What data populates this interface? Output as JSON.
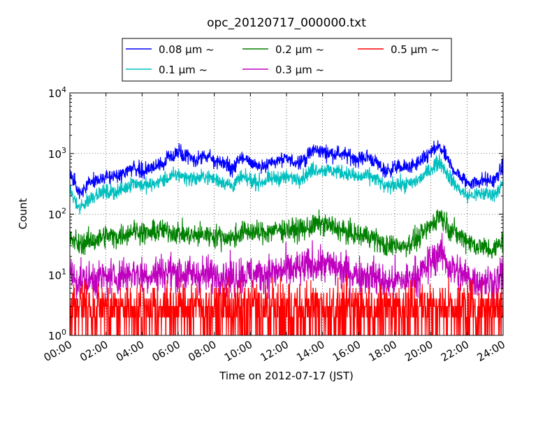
{
  "chart_data": {
    "type": "line",
    "title": "opc_20120717_000000.txt",
    "xlabel": "Time on 2012-07-17 (JST)",
    "ylabel": "Count",
    "xlim": [
      "00:00",
      "24:00"
    ],
    "ylim": [
      1,
      10000
    ],
    "yscale": "log",
    "grid": true,
    "legend_position": "top-center",
    "x_ticks": [
      "00:00",
      "02:00",
      "04:00",
      "06:00",
      "08:00",
      "10:00",
      "12:00",
      "14:00",
      "16:00",
      "18:00",
      "20:00",
      "22:00",
      "24:00"
    ],
    "y_ticks": [
      {
        "base": "10",
        "exp": "0"
      },
      {
        "base": "10",
        "exp": "1"
      },
      {
        "base": "10",
        "exp": "2"
      },
      {
        "base": "10",
        "exp": "3"
      },
      {
        "base": "10",
        "exp": "4"
      }
    ],
    "x_hours": [
      0,
      0.5,
      1,
      1.5,
      2,
      2.5,
      3,
      3.5,
      4,
      4.5,
      5,
      5.5,
      6,
      6.5,
      7,
      7.5,
      8,
      8.5,
      9,
      9.5,
      10,
      10.5,
      11,
      11.5,
      12,
      12.5,
      13,
      13.5,
      14,
      14.5,
      15,
      15.5,
      16,
      16.5,
      17,
      17.5,
      18,
      18.5,
      19,
      19.5,
      20,
      20.5,
      21,
      21.5,
      22,
      22.5,
      23,
      23.5,
      24
    ],
    "series": [
      {
        "name": "0.08 μm ~",
        "color": "#0000ff",
        "noise": 0.06,
        "values": [
          480,
          230,
          300,
          380,
          420,
          410,
          470,
          620,
          520,
          560,
          680,
          820,
          1050,
          850,
          780,
          900,
          780,
          700,
          560,
          850,
          720,
          620,
          680,
          760,
          800,
          720,
          800,
          1150,
          1080,
          1000,
          1000,
          900,
          800,
          900,
          700,
          500,
          600,
          580,
          620,
          750,
          1050,
          1300,
          700,
          450,
          330,
          340,
          370,
          350,
          620
        ]
      },
      {
        "name": "0.1 μm ~",
        "color": "#00bfbf",
        "noise": 0.06,
        "values": [
          250,
          120,
          170,
          220,
          230,
          230,
          260,
          340,
          300,
          300,
          350,
          400,
          450,
          400,
          380,
          420,
          380,
          340,
          290,
          400,
          360,
          330,
          370,
          400,
          400,
          390,
          420,
          560,
          540,
          520,
          500,
          450,
          400,
          430,
          380,
          270,
          320,
          300,
          330,
          400,
          560,
          750,
          420,
          270,
          200,
          210,
          220,
          210,
          320
        ]
      },
      {
        "name": "0.2 μm ~",
        "color": "#008000",
        "noise": 0.09,
        "values": [
          40,
          32,
          35,
          38,
          44,
          42,
          46,
          55,
          50,
          48,
          55,
          52,
          50,
          45,
          44,
          46,
          44,
          42,
          40,
          50,
          52,
          48,
          52,
          55,
          56,
          55,
          56,
          65,
          70,
          62,
          55,
          48,
          44,
          45,
          38,
          28,
          32,
          30,
          35,
          45,
          65,
          100,
          60,
          45,
          38,
          30,
          28,
          25,
          40
        ]
      },
      {
        "name": "0.3 μm ~",
        "color": "#bf00bf",
        "noise": 0.15,
        "values": [
          10,
          8,
          8,
          9,
          9,
          9,
          10,
          11,
          10,
          10,
          11,
          11,
          11,
          10,
          10,
          10,
          10,
          10,
          9,
          10,
          10,
          10,
          11,
          11,
          12,
          12,
          13,
          15,
          15,
          14,
          12,
          11,
          10,
          10,
          9,
          7,
          8,
          8,
          9,
          11,
          16,
          25,
          14,
          11,
          9,
          8,
          8,
          7,
          10
        ]
      },
      {
        "name": "0.5 μm ~",
        "color": "#ff0000",
        "noise": 0.0,
        "values": [
          3,
          3,
          3,
          3,
          3,
          3,
          3,
          3,
          3,
          3,
          3,
          3,
          3,
          3,
          3,
          3,
          3,
          3,
          3,
          3,
          3,
          3,
          3,
          3,
          3,
          3,
          3,
          3,
          3,
          3,
          3,
          3,
          3,
          3,
          3,
          3,
          3,
          3,
          3,
          3,
          3,
          3,
          3,
          3,
          3,
          3,
          3,
          3,
          3
        ]
      }
    ]
  }
}
